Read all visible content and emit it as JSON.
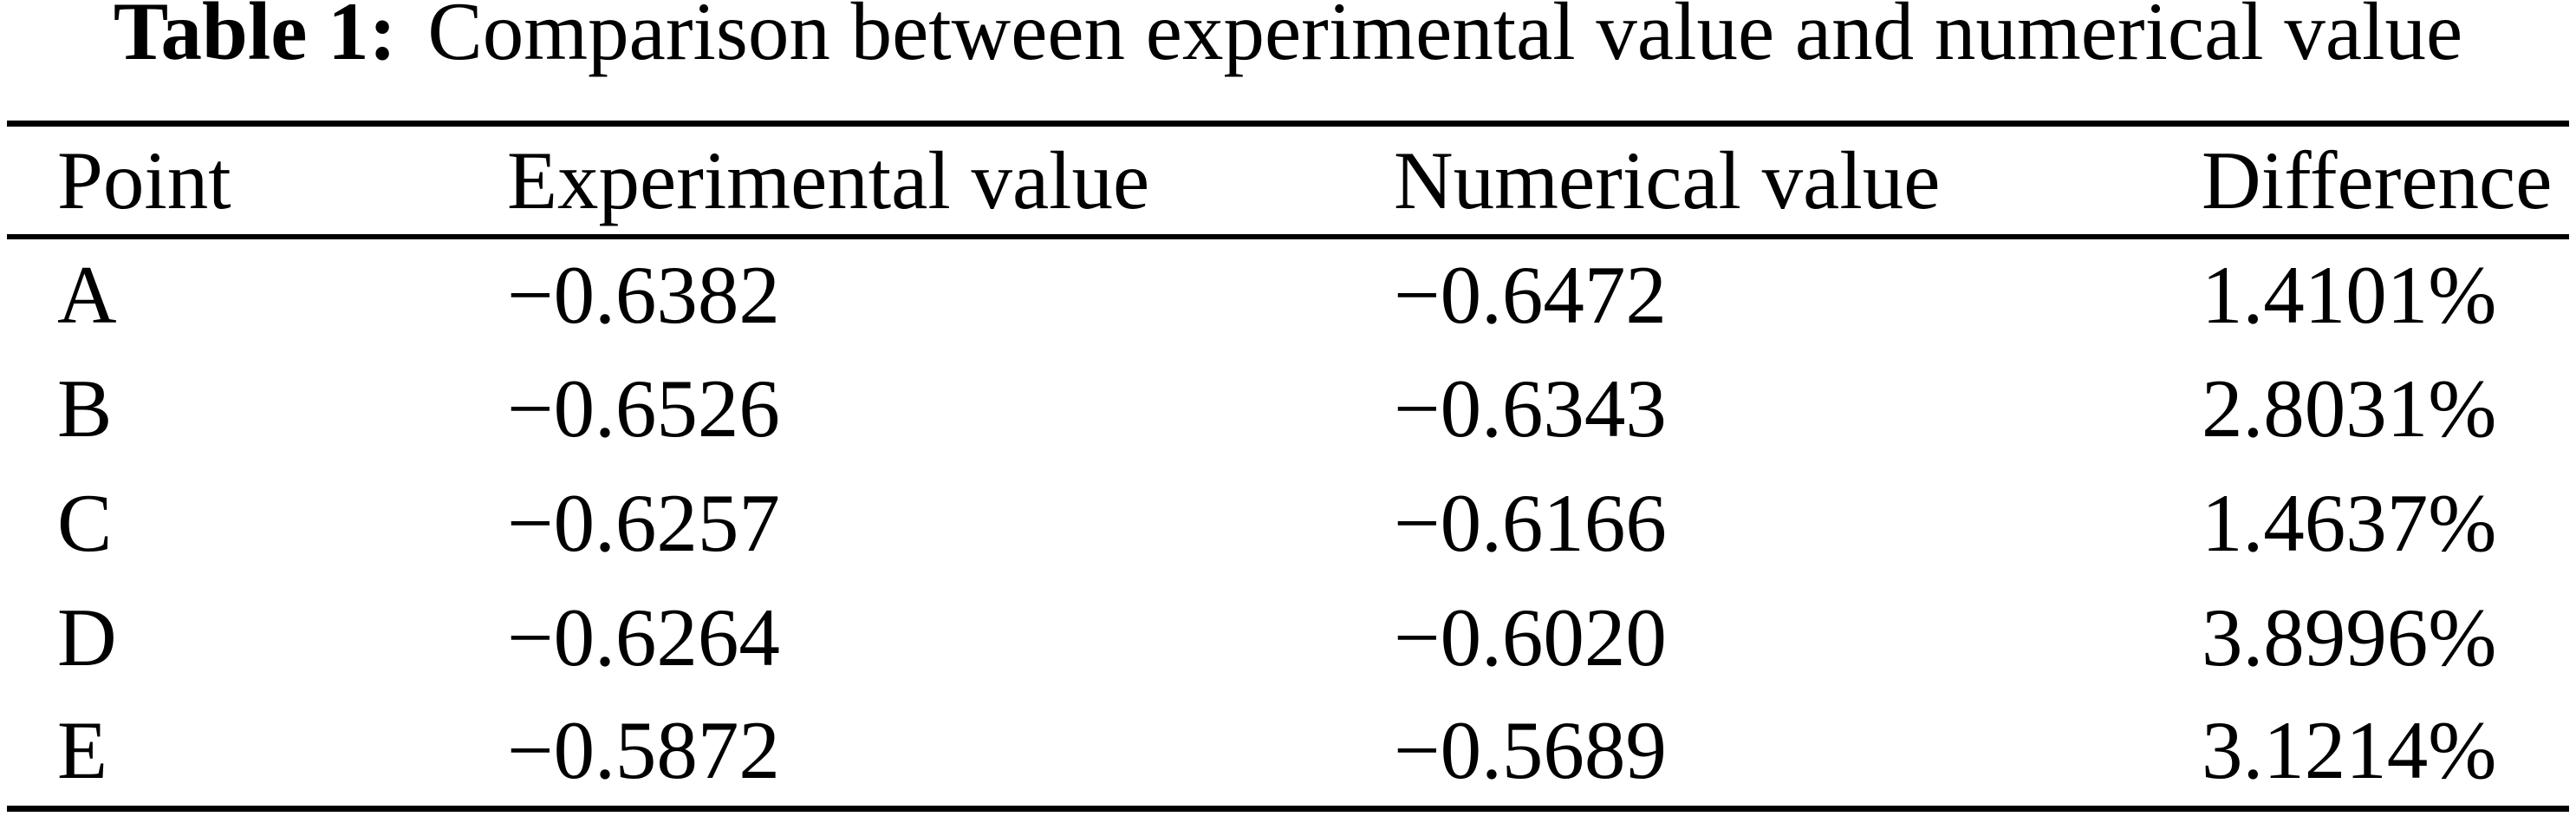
{
  "page": {
    "background_color": "#ffffff",
    "text_color": "#000000"
  },
  "caption": {
    "label": "Table 1:",
    "text": "Comparison between experimental value and numerical value"
  },
  "table": {
    "columns": [
      "Point",
      "Experimental value",
      "Numerical value",
      "Difference"
    ],
    "rows": [
      {
        "point": "A",
        "experimental": "−0.6382",
        "numerical": "−0.6472",
        "difference": "1.4101%"
      },
      {
        "point": "B",
        "experimental": "−0.6526",
        "numerical": "−0.6343",
        "difference": "2.8031%"
      },
      {
        "point": "C",
        "experimental": "−0.6257",
        "numerical": "−0.6166",
        "difference": "1.4637%"
      },
      {
        "point": "D",
        "experimental": "−0.6264",
        "numerical": "−0.6020",
        "difference": "3.8996%"
      },
      {
        "point": "E",
        "experimental": "−0.5872",
        "numerical": "−0.5689",
        "difference": "3.1214%"
      }
    ]
  },
  "chart_data": {
    "type": "table",
    "title": "Table 1: Comparison between experimental value and numerical value",
    "columns": [
      "Point",
      "Experimental value",
      "Numerical value",
      "Difference"
    ],
    "rows": [
      {
        "point": "A",
        "experimental": -0.6382,
        "numerical": -0.6472,
        "difference_percent": 1.4101
      },
      {
        "point": "B",
        "experimental": -0.6526,
        "numerical": -0.6343,
        "difference_percent": 2.8031
      },
      {
        "point": "C",
        "experimental": -0.6257,
        "numerical": -0.6166,
        "difference_percent": 1.4637
      },
      {
        "point": "D",
        "experimental": -0.6264,
        "numerical": -0.602,
        "difference_percent": 3.8996
      },
      {
        "point": "E",
        "experimental": -0.5872,
        "numerical": -0.5689,
        "difference_percent": 3.1214
      }
    ]
  }
}
